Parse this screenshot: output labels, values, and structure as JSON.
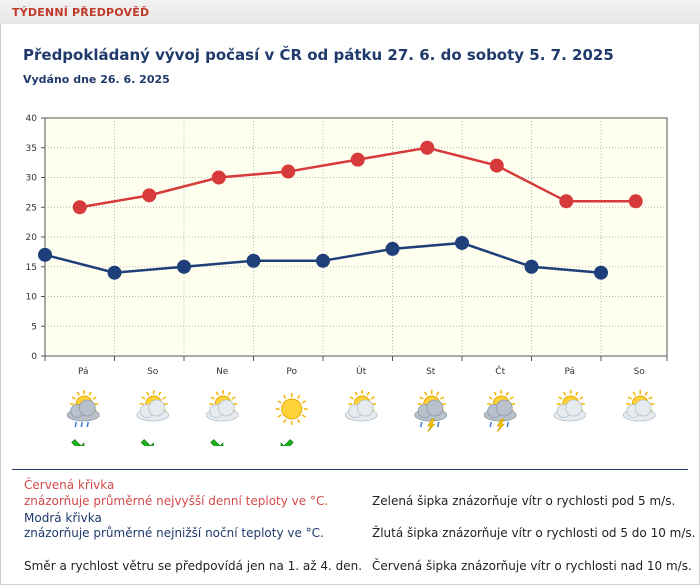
{
  "tab": {
    "title": "TÝDENNÍ PŘEDPOVĚĎ"
  },
  "heading": "Předpokládaný vývoj počasí v ČR od pátku 27. 6. do soboty 5. 7. 2025",
  "issued": "Vydáno dne 26. 6. 2025",
  "chart_data": {
    "type": "line",
    "title": "",
    "xlabel": "",
    "ylabel": "",
    "ylim": [
      0,
      40
    ],
    "yticks": [
      0,
      5,
      10,
      15,
      20,
      25,
      30,
      35,
      40
    ],
    "grid": true,
    "categories": [
      "Pá",
      "So",
      "Ne",
      "Po",
      "Út",
      "St",
      "Čt",
      "Pá",
      "So"
    ],
    "series": [
      {
        "key": "max",
        "color": "#d63a3a",
        "x": [
          0.5,
          1.5,
          2.5,
          3.5,
          4.5,
          5.5,
          6.5,
          7.5,
          8.5
        ],
        "values": [
          25,
          27,
          30,
          31,
          33,
          35,
          32,
          26,
          26
        ]
      },
      {
        "key": "min",
        "color": "#1e3f7a",
        "x": [
          0,
          1,
          2,
          3,
          4,
          5,
          6,
          7,
          8
        ],
        "values": [
          17,
          14,
          15,
          16,
          16,
          18,
          19,
          15,
          14
        ]
      }
    ]
  },
  "icons": [
    {
      "sky": "cloud-sun-rain",
      "wind": "green-arrow-down-right"
    },
    {
      "sky": "sun-cloud",
      "wind": "green-arrow-down-right"
    },
    {
      "sky": "sun-cloud",
      "wind": "green-arrow-down-right"
    },
    {
      "sky": "sun",
      "wind": "green-arrow-down-left"
    },
    {
      "sky": "sun-cloud",
      "wind": ""
    },
    {
      "sky": "sun-cloud-storm",
      "wind": ""
    },
    {
      "sky": "sun-cloud-storm",
      "wind": ""
    },
    {
      "sky": "sun-cloud",
      "wind": ""
    },
    {
      "sky": "sun-cloud",
      "wind": ""
    }
  ],
  "colors": {
    "plot_bg": "#fffff0",
    "wind_green": "#19b519",
    "accent": "#1f3a6b"
  },
  "legend": {
    "red_title": "Červená křivka",
    "red_desc": "znázorňuje průměrné nejvyšší denní teploty ve °C.",
    "blue_title": "Modrá křivka",
    "blue_desc": "znázorňuje průměrné nejnižší noční teploty ve °C.",
    "wind_note": "Směr a rychlost větru se předpovídá jen na 1. až 4. den.",
    "green_arrow": "Zelená šipka znázorňuje vítr o rychlosti pod 5 m/s.",
    "yellow_arrow": "Žlutá šipka znázorňuje vítr o rychlosti od 5 do 10 m/s.",
    "red_arrow": "Červená šipka znázorňuje vítr o rychlosti nad 10 m/s."
  }
}
